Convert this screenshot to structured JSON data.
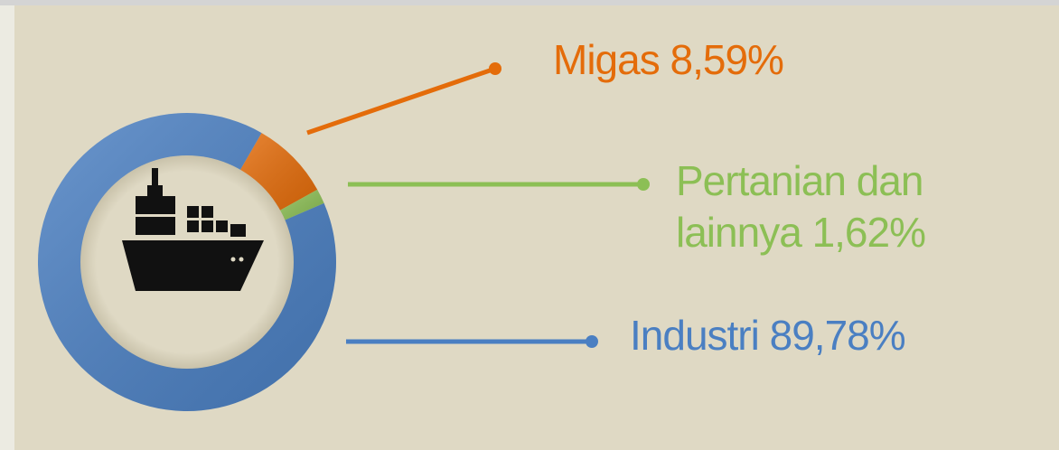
{
  "chart_data": {
    "type": "donut",
    "categories": [
      "Migas",
      "Pertanian dan lainnya",
      "Industri"
    ],
    "values": [
      8.59,
      1.62,
      89.78
    ],
    "value_labels": [
      "8,59%",
      "1,62%",
      "89,78%"
    ],
    "colors": [
      "#e46c0a",
      "#8cbf55",
      "#4a7fc2"
    ]
  }
}
